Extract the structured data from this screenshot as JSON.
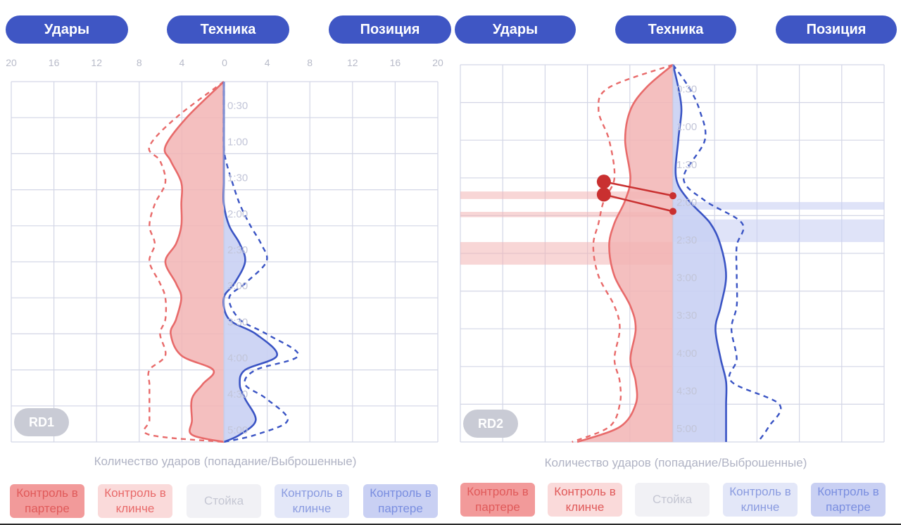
{
  "panels": [
    {
      "tabs": [
        "Удары",
        "Техника",
        "Позиция"
      ],
      "round_label": "RD1",
      "x_axis_label": "Количество ударов (попадание/Выброшенные)",
      "legend": [
        "Контроль в партере",
        "Контроль в клинче",
        "Стойка",
        "Контроль в клинче",
        "Контроль в партере"
      ]
    },
    {
      "tabs": [
        "Удары",
        "Техника",
        "Позиция"
      ],
      "round_label": "RD2",
      "x_axis_label": "Количество ударов (попадание/Выброшенные)",
      "legend": [
        "Контроль в партере",
        "Контроль в клинче",
        "Стойка",
        "Контроль в клинче",
        "Контроль в партере"
      ]
    }
  ],
  "colors": {
    "tab_bg": "#3f56c4",
    "red": "#e86a6a",
    "red_fill": "#f2b4b4",
    "blue": "#3a54c4",
    "blue_fill": "#c9d0f3",
    "grid": "#d3d6e6",
    "legend_red_strong_bg": "#f29a9a",
    "legend_red_light_bg": "#fadada",
    "legend_neutral_bg": "#f1f1f5",
    "legend_blue_light_bg": "#e3e7f8",
    "legend_blue_strong_bg": "#c9d0f3"
  },
  "chart_data": [
    {
      "type": "area",
      "orientation": "vertical-time",
      "x_tick_labels": [
        "20",
        "16",
        "12",
        "8",
        "4",
        "0",
        "4",
        "8",
        "12",
        "16",
        "20"
      ],
      "time_labels": [
        "0:30",
        "1:00",
        "1:30",
        "2:00",
        "2:30",
        "3:00",
        "3:30",
        "4:00",
        "4:30",
        "5:00"
      ],
      "t": [
        0,
        0.5,
        0.9,
        1.1,
        1.4,
        1.7,
        2.0,
        2.25,
        2.5,
        2.8,
        3.0,
        3.3,
        3.5,
        3.8,
        4.0,
        4.2,
        4.4,
        4.7,
        4.9,
        5.0
      ],
      "series": [
        {
          "side": "left",
          "style": "solid",
          "values": [
            0,
            3.5,
            5.5,
            5.0,
            4.0,
            4.0,
            4.0,
            4.5,
            5.5,
            4.5,
            4.0,
            4.5,
            5.0,
            4.0,
            1.0,
            2.0,
            3.0,
            3.0,
            3.0,
            0
          ]
        },
        {
          "side": "left",
          "style": "dashed",
          "values": [
            0,
            4.5,
            7.0,
            6.0,
            5.5,
            6.5,
            7.0,
            6.5,
            7.0,
            6.0,
            5.5,
            5.5,
            6.0,
            5.5,
            7.0,
            7.0,
            7.0,
            7.0,
            7.0,
            0
          ]
        },
        {
          "side": "right",
          "style": "solid",
          "values": [
            0,
            0,
            0,
            0,
            0,
            0,
            0.5,
            1.5,
            2.0,
            1.0,
            0,
            0.5,
            3.0,
            5.0,
            2.0,
            1.5,
            2.0,
            3.0,
            1.5,
            0
          ]
        },
        {
          "side": "right",
          "style": "dashed",
          "values": [
            0,
            0,
            0,
            0.2,
            0.8,
            1.5,
            2.5,
            3.5,
            4.0,
            2.0,
            0.5,
            1.5,
            4.0,
            7.0,
            3.0,
            2.0,
            4.0,
            6.0,
            3.0,
            0
          ]
        }
      ]
    },
    {
      "type": "area",
      "orientation": "vertical-time",
      "x_tick_labels": [],
      "time_labels": [
        "0:30",
        "1:00",
        "1:30",
        "2:00",
        "2:30",
        "3:00",
        "3:30",
        "4:00",
        "4:30",
        "5:00"
      ],
      "t": [
        0,
        0.3,
        0.6,
        1.0,
        1.5,
        1.8,
        2.1,
        2.4,
        2.8,
        3.2,
        3.5,
        3.9,
        4.2,
        4.5,
        4.8,
        5.0
      ],
      "series": [
        {
          "side": "left",
          "style": "solid",
          "values": [
            0,
            2.5,
            4.0,
            4.5,
            4.0,
            4.5,
            5.5,
            6.0,
            5.5,
            4.0,
            3.5,
            4.0,
            3.5,
            3.5,
            5.0,
            9.0
          ]
        },
        {
          "side": "left",
          "style": "dashed",
          "values": [
            0,
            6.0,
            7.0,
            6.0,
            5.5,
            6.5,
            7.0,
            7.5,
            7.0,
            5.5,
            5.0,
            5.5,
            5.0,
            5.0,
            6.0,
            9.5
          ]
        },
        {
          "side": "right",
          "style": "solid",
          "values": [
            0,
            0.5,
            0.8,
            0.5,
            0.3,
            1.5,
            3.5,
            4.5,
            5.0,
            4.5,
            4.0,
            4.5,
            5.0,
            5.0,
            5.0,
            5.0
          ]
        },
        {
          "side": "right",
          "style": "dashed",
          "values": [
            0,
            1.5,
            2.5,
            3.0,
            1.0,
            3.0,
            6.5,
            6.0,
            6.0,
            6.0,
            5.5,
            6.0,
            5.5,
            10.0,
            9.0,
            8.0
          ]
        }
      ],
      "bands": [
        {
          "t0": 1.68,
          "t1": 1.78,
          "color": "red"
        },
        {
          "t0": 1.95,
          "t1": 2.02,
          "color": "red"
        },
        {
          "t0": 2.35,
          "t1": 2.65,
          "color": "red"
        },
        {
          "t0": 1.82,
          "t1": 1.92,
          "color": "blue"
        },
        {
          "t0": 2.05,
          "t1": 2.35,
          "color": "blue"
        }
      ],
      "markers": [
        {
          "t": 1.55,
          "color": "red",
          "value_left": 6.5
        },
        {
          "t": 1.72,
          "color": "red",
          "value_left": 6.5
        }
      ]
    }
  ]
}
